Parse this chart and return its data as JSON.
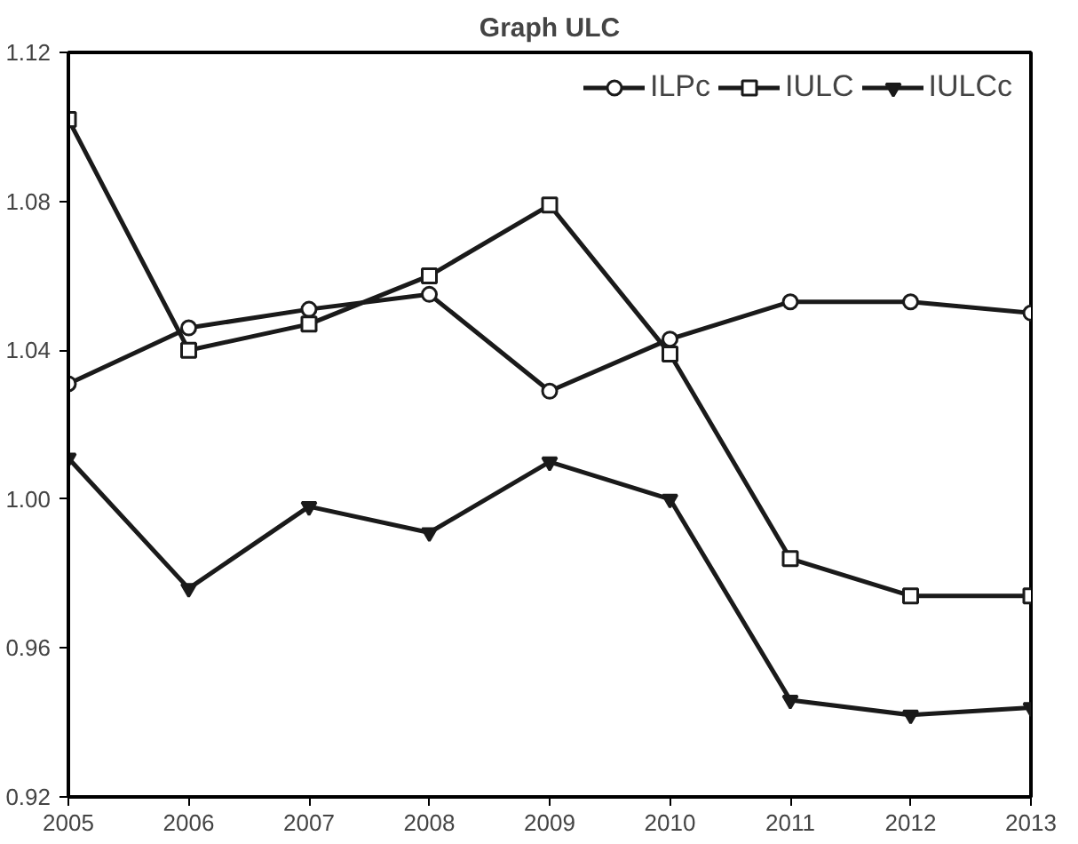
{
  "chart_data": {
    "type": "line",
    "title": "Graph ULC",
    "x": [
      2005,
      2006,
      2007,
      2008,
      2009,
      2010,
      2011,
      2012,
      2013
    ],
    "series": [
      {
        "name": "ILPc",
        "color": "#1a1a1a",
        "marker": "circle",
        "values": [
          1.031,
          1.046,
          1.051,
          1.055,
          1.029,
          1.043,
          1.053,
          1.053,
          1.05
        ]
      },
      {
        "name": "IULC",
        "color": "#1a1a1a",
        "marker": "square",
        "values": [
          1.102,
          1.04,
          1.047,
          1.06,
          1.079,
          1.039,
          0.984,
          0.974,
          0.974
        ]
      },
      {
        "name": "IULCc",
        "color": "#1a1a1a",
        "marker": "triangle",
        "values": [
          1.011,
          0.976,
          0.998,
          0.991,
          1.01,
          1.0,
          0.946,
          0.942,
          0.944
        ]
      }
    ],
    "xlim": [
      2005,
      2013
    ],
    "xticks": [
      2005,
      2006,
      2007,
      2008,
      2009,
      2010,
      2011,
      2012,
      2013
    ],
    "ylim": [
      0.92,
      1.12
    ],
    "yticks": [
      {
        "value": 0.92,
        "label": "0.92"
      },
      {
        "value": 0.96,
        "label": "0.96"
      },
      {
        "value": 1.0,
        "label": "1.00"
      },
      {
        "value": 1.04,
        "label": "1.04"
      },
      {
        "value": 1.08,
        "label": "1.08"
      },
      {
        "value": 1.12,
        "label": "1.12"
      }
    ],
    "grid": false,
    "legend": "top right",
    "line_style": "solid"
  }
}
